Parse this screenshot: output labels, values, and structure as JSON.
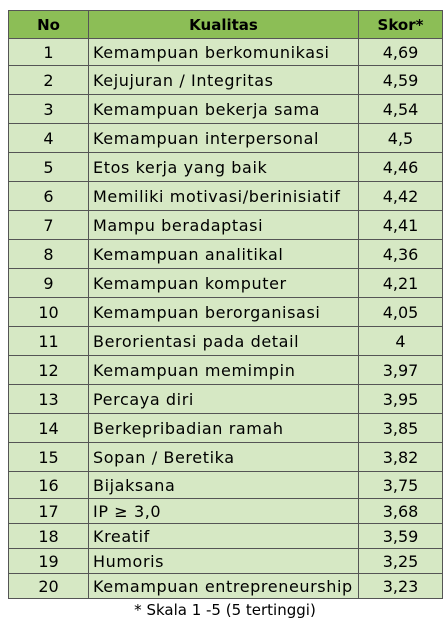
{
  "table": {
    "headers": {
      "no": "No",
      "quality": "Kualitas",
      "score": "Skor*"
    },
    "rows": [
      {
        "no": "1",
        "quality": "Kemampuan berkomunikasi",
        "score": "4,69"
      },
      {
        "no": "2",
        "quality": "Kejujuran / Integritas",
        "score": "4,59"
      },
      {
        "no": "3",
        "quality": "Kemampuan bekerja sama",
        "score": "4,54"
      },
      {
        "no": "4",
        "quality": "Kemampuan interpersonal",
        "score": "4,5"
      },
      {
        "no": "5",
        "quality": "Etos kerja yang baik",
        "score": "4,46"
      },
      {
        "no": "6",
        "quality": "Memiliki motivasi/berinisiatif",
        "score": "4,42"
      },
      {
        "no": "7",
        "quality": "Mampu beradaptasi",
        "score": "4,41"
      },
      {
        "no": "8",
        "quality": "Kemampuan analitikal",
        "score": "4,36"
      },
      {
        "no": "9",
        "quality": "Kemampuan komputer",
        "score": "4,21"
      },
      {
        "no": "10",
        "quality": "Kemampuan berorganisasi",
        "score": "4,05"
      },
      {
        "no": "11",
        "quality": "Berorientasi pada detail",
        "score": "4"
      },
      {
        "no": "12",
        "quality": "Kemampuan memimpin",
        "score": "3,97"
      },
      {
        "no": "13",
        "quality": "Percaya diri",
        "score": "3,95"
      },
      {
        "no": "14",
        "quality": "Berkepribadian ramah",
        "score": "3,85"
      },
      {
        "no": "15",
        "quality": "Sopan / Beretika",
        "score": "3,82"
      },
      {
        "no": "16",
        "quality": "Bijaksana",
        "score": "3,75"
      },
      {
        "no": "17",
        "quality": "IP ≥ 3,0",
        "score": "3,68"
      },
      {
        "no": "18",
        "quality": "Kreatif",
        "score": "3,59"
      },
      {
        "no": "19",
        "quality": "Humoris",
        "score": "3,25"
      },
      {
        "no": "20",
        "quality": "Kemampuan entrepreneurship",
        "score": "3,23"
      }
    ]
  },
  "footnote": "* Skala 1 -5 (5 tertinggi)",
  "colors": {
    "header_bg": "#8cbe56",
    "row_bg": "#d6e8c4",
    "border": "#555555"
  }
}
